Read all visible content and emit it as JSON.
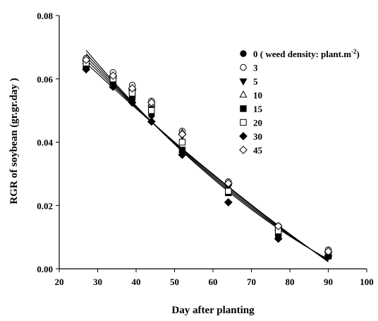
{
  "chart_data": {
    "type": "scatter",
    "title": "",
    "xlabel": "Day after planting",
    "ylabel": "RGR of soybean (gr.gr.day )",
    "xlim": [
      20,
      100
    ],
    "ylim": [
      0.0,
      0.08
    ],
    "xticks": [
      "20",
      "30",
      "40",
      "50",
      "60",
      "70",
      "80",
      "90",
      "100"
    ],
    "yticks": [
      "0.00",
      "0.02",
      "0.04",
      "0.06",
      "0.08"
    ],
    "grid": false,
    "legend": "top-right",
    "legend_note": {
      "prefix": " ( weed density: plant.m",
      "sup": "-2",
      "suffix": ")"
    },
    "x": [
      27,
      34,
      39,
      44,
      52,
      64,
      77,
      90
    ],
    "series": [
      {
        "name": "0",
        "marker": "circle-filled",
        "values": [
          0.064,
          0.0585,
          0.0535,
          0.0485,
          0.037,
          0.025,
          0.0115,
          0.0045
        ]
      },
      {
        "name": "3",
        "marker": "circle-open",
        "values": [
          0.0665,
          0.062,
          0.058,
          0.053,
          0.0435,
          0.0275,
          0.0135,
          0.006
        ]
      },
      {
        "name": "5",
        "marker": "triangle-down-filled",
        "values": [
          0.065,
          0.06,
          0.056,
          0.051,
          0.042,
          0.026,
          0.0125,
          0.0045
        ]
      },
      {
        "name": "10",
        "marker": "triangle-up-open",
        "values": [
          0.0655,
          0.061,
          0.057,
          0.052,
          0.043,
          0.027,
          0.013,
          0.005
        ]
      },
      {
        "name": "15",
        "marker": "square-filled",
        "values": [
          0.064,
          0.058,
          0.055,
          0.05,
          0.0375,
          0.024,
          0.011,
          0.004
        ]
      },
      {
        "name": "20",
        "marker": "square-open",
        "values": [
          0.065,
          0.06,
          0.0555,
          0.05,
          0.04,
          0.0245,
          0.012,
          0.0045
        ]
      },
      {
        "name": "30",
        "marker": "diamond-filled",
        "values": [
          0.063,
          0.0575,
          0.0525,
          0.0465,
          0.036,
          0.021,
          0.0095,
          0.004
        ]
      },
      {
        "name": "45",
        "marker": "diamond-open",
        "values": [
          0.066,
          0.061,
          0.057,
          0.0525,
          0.0425,
          0.027,
          0.0135,
          0.0055
        ]
      }
    ],
    "fits": [
      {
        "x": [
          27,
          90
        ],
        "y": [
          0.069,
          0.003
        ],
        "curve": -0.006
      },
      {
        "x": [
          27,
          90
        ],
        "y": [
          0.068,
          0.0028
        ],
        "curve": -0.005
      },
      {
        "x": [
          27,
          90
        ],
        "y": [
          0.067,
          0.0026
        ],
        "curve": -0.004
      },
      {
        "x": [
          27,
          90
        ],
        "y": [
          0.066,
          0.0024
        ],
        "curve": -0.003
      },
      {
        "x": [
          27,
          90
        ],
        "y": [
          0.065,
          0.0022
        ],
        "curve": -0.0022
      }
    ]
  }
}
